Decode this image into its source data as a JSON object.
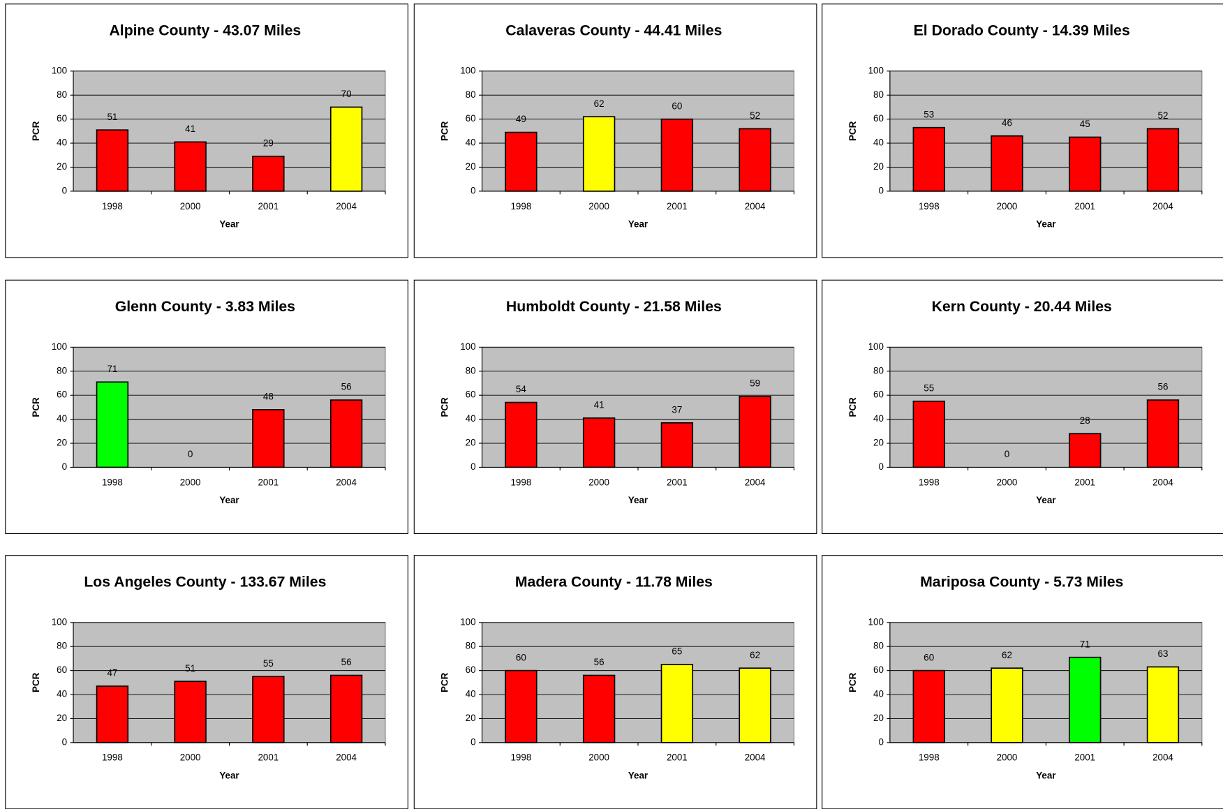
{
  "chart_data": [
    {
      "type": "bar",
      "title": "Alpine County - 43.07 Miles",
      "x_label": "Year",
      "y_label": "PCR",
      "categories": [
        "1998",
        "2000",
        "2001",
        "2004"
      ],
      "values": [
        51,
        41,
        29,
        70
      ],
      "colors": [
        "#ff0000",
        "#ff0000",
        "#ff0000",
        "#ffff00"
      ],
      "ylim": [
        0,
        100
      ],
      "yticks": [
        0,
        20,
        40,
        60,
        80,
        100
      ],
      "grid": true
    },
    {
      "type": "bar",
      "title": "Calaveras County - 44.41 Miles",
      "x_label": "Year",
      "y_label": "PCR",
      "categories": [
        "1998",
        "2000",
        "2001",
        "2004"
      ],
      "values": [
        49,
        62,
        60,
        52
      ],
      "colors": [
        "#ff0000",
        "#ffff00",
        "#ff0000",
        "#ff0000"
      ],
      "ylim": [
        0,
        100
      ],
      "yticks": [
        0,
        20,
        40,
        60,
        80,
        100
      ],
      "grid": true
    },
    {
      "type": "bar",
      "title": "El Dorado County - 14.39 Miles",
      "x_label": "Year",
      "y_label": "PCR",
      "categories": [
        "1998",
        "2000",
        "2001",
        "2004"
      ],
      "values": [
        53,
        46,
        45,
        52
      ],
      "colors": [
        "#ff0000",
        "#ff0000",
        "#ff0000",
        "#ff0000"
      ],
      "ylim": [
        0,
        100
      ],
      "yticks": [
        0,
        20,
        40,
        60,
        80,
        100
      ],
      "grid": true
    },
    {
      "type": "bar",
      "title": "Glenn County - 3.83 Miles",
      "x_label": "Year",
      "y_label": "PCR",
      "categories": [
        "1998",
        "2000",
        "2001",
        "2004"
      ],
      "values": [
        71,
        0,
        48,
        56
      ],
      "colors": [
        "#00ff00",
        "#ff0000",
        "#ff0000",
        "#ff0000"
      ],
      "ylim": [
        0,
        100
      ],
      "yticks": [
        0,
        20,
        40,
        60,
        80,
        100
      ],
      "grid": true
    },
    {
      "type": "bar",
      "title": "Humboldt County - 21.58 Miles",
      "x_label": "Year",
      "y_label": "PCR",
      "categories": [
        "1998",
        "2000",
        "2001",
        "2004"
      ],
      "values": [
        54,
        41,
        37,
        59
      ],
      "colors": [
        "#ff0000",
        "#ff0000",
        "#ff0000",
        "#ff0000"
      ],
      "ylim": [
        0,
        100
      ],
      "yticks": [
        0,
        20,
        40,
        60,
        80,
        100
      ],
      "grid": true
    },
    {
      "type": "bar",
      "title": "Kern County - 20.44 Miles",
      "x_label": "Year",
      "y_label": "PCR",
      "categories": [
        "1998",
        "2000",
        "2001",
        "2004"
      ],
      "values": [
        55,
        0,
        28,
        56
      ],
      "colors": [
        "#ff0000",
        "#ff0000",
        "#ff0000",
        "#ff0000"
      ],
      "ylim": [
        0,
        100
      ],
      "yticks": [
        0,
        20,
        40,
        60,
        80,
        100
      ],
      "grid": true
    },
    {
      "type": "bar",
      "title": "Los Angeles County - 133.67 Miles",
      "x_label": "Year",
      "y_label": "PCR",
      "categories": [
        "1998",
        "2000",
        "2001",
        "2004"
      ],
      "values": [
        47,
        51,
        55,
        56
      ],
      "colors": [
        "#ff0000",
        "#ff0000",
        "#ff0000",
        "#ff0000"
      ],
      "ylim": [
        0,
        100
      ],
      "yticks": [
        0,
        20,
        40,
        60,
        80,
        100
      ],
      "grid": true
    },
    {
      "type": "bar",
      "title": "Madera County - 11.78 Miles",
      "x_label": "Year",
      "y_label": "PCR",
      "categories": [
        "1998",
        "2000",
        "2001",
        "2004"
      ],
      "values": [
        60,
        56,
        65,
        62
      ],
      "colors": [
        "#ff0000",
        "#ff0000",
        "#ffff00",
        "#ffff00"
      ],
      "ylim": [
        0,
        100
      ],
      "yticks": [
        0,
        20,
        40,
        60,
        80,
        100
      ],
      "grid": true
    },
    {
      "type": "bar",
      "title": "Mariposa County - 5.73 Miles",
      "x_label": "Year",
      "y_label": "PCR",
      "categories": [
        "1998",
        "2000",
        "2001",
        "2004"
      ],
      "values": [
        60,
        62,
        71,
        63
      ],
      "colors": [
        "#ff0000",
        "#ffff00",
        "#00ff00",
        "#ffff00"
      ],
      "ylim": [
        0,
        100
      ],
      "yticks": [
        0,
        20,
        40,
        60,
        80,
        100
      ],
      "grid": true
    }
  ]
}
